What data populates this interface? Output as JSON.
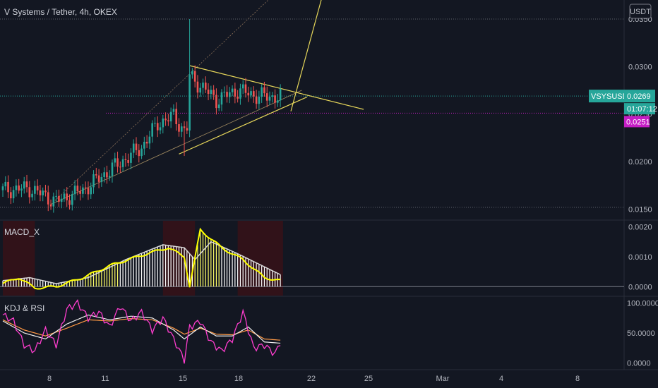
{
  "header": {
    "title": "V Systems / Tether, 4h, OKEX",
    "currency": "USDT"
  },
  "price_axis": {
    "ticks": [
      "0.0350",
      "0.0300",
      "0.0250",
      "0.0200",
      "0.0150"
    ],
    "current_symbol": "VSYSUSDT",
    "current_price": "0.0269",
    "countdown": "01:07:12",
    "line_price": "0.0251"
  },
  "time_axis": {
    "labels": [
      "8",
      "11",
      "15",
      "18",
      "22",
      "25",
      "Mar",
      "4",
      "8"
    ]
  },
  "colors": {
    "background": "#131722",
    "up": "#26a69a",
    "down": "#ef5350",
    "trendline": "#e6d65a",
    "magenta": "#c51dc5",
    "macd_signal": "#d8d8d8",
    "macd_line": "#ffff00",
    "kdj_k": "#ff3dcf",
    "kdj_d": "#f0f0f0",
    "kdj_j": "#ff9944"
  },
  "chart_data": [
    {
      "type": "candlestick",
      "title": "V Systems / Tether, 4h, OKEX",
      "ylabel": "USDT",
      "ylim": [
        0.014,
        0.037
      ],
      "x_labels": [
        "8",
        "11",
        "15",
        "18",
        "22",
        "25",
        "Mar",
        "4",
        "8"
      ],
      "anchors": [
        {
          "i": 0,
          "v": 0.017
        },
        {
          "i": 10,
          "v": 0.0172
        },
        {
          "i": 20,
          "v": 0.0158
        },
        {
          "i": 30,
          "v": 0.017
        },
        {
          "i": 42,
          "v": 0.0195
        },
        {
          "i": 52,
          "v": 0.0215
        },
        {
          "i": 58,
          "v": 0.024
        },
        {
          "i": 64,
          "v": 0.0248
        },
        {
          "i": 68,
          "v": 0.0232
        },
        {
          "i": 69,
          "v": 0.0235
        },
        {
          "i": 70,
          "v": 0.029
        },
        {
          "i": 74,
          "v": 0.028
        },
        {
          "i": 80,
          "v": 0.0265
        },
        {
          "i": 88,
          "v": 0.0275
        },
        {
          "i": 94,
          "v": 0.027
        },
        {
          "i": 100,
          "v": 0.0268
        },
        {
          "i": 104,
          "v": 0.0269
        }
      ],
      "spike_high": 0.035,
      "last_price": 0.0269,
      "horizontal_lines": [
        0.035,
        0.0269,
        0.0251,
        0.0152
      ]
    },
    {
      "type": "bar",
      "title": "MACD_X",
      "ylim": [
        -0.0003,
        0.0022
      ],
      "y_ticks": [
        "0.0020",
        "0.0010",
        "0.0000"
      ],
      "anchors": [
        {
          "i": 0,
          "v": 0.0001
        },
        {
          "i": 6,
          "v": 0.0003
        },
        {
          "i": 12,
          "v": -5e-05
        },
        {
          "i": 20,
          "v": 0.0
        },
        {
          "i": 30,
          "v": 0.0003
        },
        {
          "i": 40,
          "v": 0.0007
        },
        {
          "i": 54,
          "v": 0.0011
        },
        {
          "i": 62,
          "v": 0.0013
        },
        {
          "i": 68,
          "v": 0.001
        },
        {
          "i": 70,
          "v": 0.0
        },
        {
          "i": 74,
          "v": 0.0019
        },
        {
          "i": 82,
          "v": 0.0013
        },
        {
          "i": 90,
          "v": 0.0009
        },
        {
          "i": 98,
          "v": 0.0003
        },
        {
          "i": 104,
          "v": 0.0002
        }
      ],
      "signal_anchors": [
        {
          "i": 0,
          "v": 0.0002
        },
        {
          "i": 10,
          "v": 0.0003
        },
        {
          "i": 20,
          "v": 0.0001
        },
        {
          "i": 32,
          "v": 0.0003
        },
        {
          "i": 46,
          "v": 0.0009
        },
        {
          "i": 60,
          "v": 0.0014
        },
        {
          "i": 68,
          "v": 0.0013
        },
        {
          "i": 72,
          "v": 0.0009
        },
        {
          "i": 78,
          "v": 0.0015
        },
        {
          "i": 88,
          "v": 0.0011
        },
        {
          "i": 104,
          "v": 0.0004
        }
      ]
    },
    {
      "type": "line",
      "title": "KDJ & RSI",
      "ylim": [
        -10,
        110
      ],
      "y_ticks": [
        "100.0000",
        "50.0000",
        "0.0000"
      ],
      "series": [
        {
          "anchors": [
            {
              "i": 0,
              "v": 80
            },
            {
              "i": 4,
              "v": 70
            },
            {
              "i": 8,
              "v": 30
            },
            {
              "i": 12,
              "v": 20
            },
            {
              "i": 16,
              "v": 55
            },
            {
              "i": 20,
              "v": 30
            },
            {
              "i": 24,
              "v": 90
            },
            {
              "i": 28,
              "v": 100
            },
            {
              "i": 32,
              "v": 75
            },
            {
              "i": 36,
              "v": 85
            },
            {
              "i": 40,
              "v": 60
            },
            {
              "i": 44,
              "v": 95
            },
            {
              "i": 48,
              "v": 70
            },
            {
              "i": 52,
              "v": 85
            },
            {
              "i": 56,
              "v": 55
            },
            {
              "i": 60,
              "v": 75
            },
            {
              "i": 64,
              "v": 40
            },
            {
              "i": 68,
              "v": 5
            },
            {
              "i": 70,
              "v": 60
            },
            {
              "i": 74,
              "v": 70
            },
            {
              "i": 78,
              "v": 35
            },
            {
              "i": 82,
              "v": 20
            },
            {
              "i": 86,
              "v": 40
            },
            {
              "i": 90,
              "v": 85
            },
            {
              "i": 94,
              "v": 25
            },
            {
              "i": 98,
              "v": 30
            },
            {
              "i": 102,
              "v": 15
            },
            {
              "i": 104,
              "v": 35
            }
          ]
        },
        {
          "anchors": [
            {
              "i": 0,
              "v": 70
            },
            {
              "i": 8,
              "v": 50
            },
            {
              "i": 16,
              "v": 40
            },
            {
              "i": 24,
              "v": 65
            },
            {
              "i": 32,
              "v": 80
            },
            {
              "i": 40,
              "v": 72
            },
            {
              "i": 48,
              "v": 78
            },
            {
              "i": 56,
              "v": 75
            },
            {
              "i": 64,
              "v": 55
            },
            {
              "i": 68,
              "v": 40
            },
            {
              "i": 74,
              "v": 60
            },
            {
              "i": 80,
              "v": 45
            },
            {
              "i": 86,
              "v": 45
            },
            {
              "i": 92,
              "v": 60
            },
            {
              "i": 98,
              "v": 35
            },
            {
              "i": 104,
              "v": 33
            }
          ]
        },
        {
          "anchors": [
            {
              "i": 0,
              "v": 72
            },
            {
              "i": 8,
              "v": 55
            },
            {
              "i": 16,
              "v": 45
            },
            {
              "i": 24,
              "v": 58
            },
            {
              "i": 32,
              "v": 72
            },
            {
              "i": 40,
              "v": 70
            },
            {
              "i": 48,
              "v": 74
            },
            {
              "i": 56,
              "v": 72
            },
            {
              "i": 64,
              "v": 58
            },
            {
              "i": 68,
              "v": 48
            },
            {
              "i": 74,
              "v": 58
            },
            {
              "i": 80,
              "v": 48
            },
            {
              "i": 86,
              "v": 47
            },
            {
              "i": 92,
              "v": 55
            },
            {
              "i": 98,
              "v": 40
            },
            {
              "i": 104,
              "v": 38
            }
          ]
        }
      ]
    }
  ]
}
